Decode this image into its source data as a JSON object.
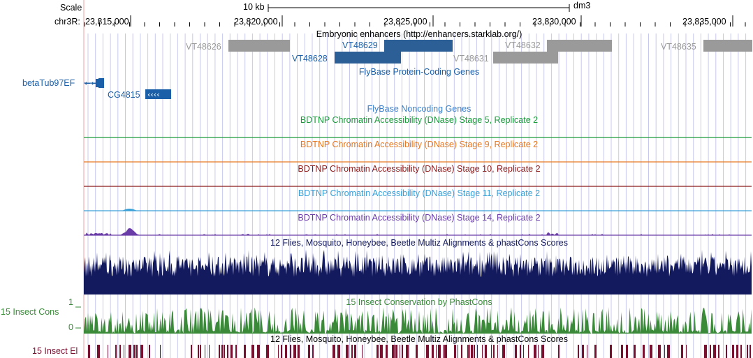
{
  "browser": {
    "scale_label": "Scale",
    "scale_bar_label": "10 kb",
    "assembly": "dm3",
    "chrom_label": "chr3R:",
    "positions": [
      "23,815,000",
      "23,820,000",
      "23,825,000",
      "23,830,000",
      "23,835,000"
    ]
  },
  "tracks": {
    "enhancers": {
      "title": "Embryonic enhancers (http://enhancers.starklab.org/)",
      "items": [
        {
          "name": "VT48626",
          "highlight": false
        },
        {
          "name": "VT48629",
          "highlight": true
        },
        {
          "name": "VT48632",
          "highlight": false
        },
        {
          "name": "VT48635",
          "highlight": false
        },
        {
          "name": "VT48628",
          "highlight": true
        },
        {
          "name": "VT48631",
          "highlight": false
        }
      ]
    },
    "coding_genes": {
      "title": "FlyBase Protein-Coding Genes",
      "genes": [
        "betaTub97EF",
        "CG4815"
      ]
    },
    "noncoding_genes": {
      "title": "FlyBase Noncoding Genes"
    },
    "dnase": [
      {
        "title": "BDTNP Chromatin Accessibility (DNase) Stage 5, Replicate 2",
        "color": "#1a9a3a"
      },
      {
        "title": "BDTNP Chromatin Accessibility (DNase) Stage 9, Replicate 2",
        "color": "#e67822"
      },
      {
        "title": "BDTNP Chromatin Accessibility (DNase) Stage 10, Replicate 2",
        "color": "#8b1a1a"
      },
      {
        "title": "BDTNP Chromatin Accessibility (DNase) Stage 11, Replicate 2",
        "color": "#3aa0d6"
      },
      {
        "title": "BDTNP Chromatin Accessibility (DNase) Stage 14, Replicate 2",
        "color": "#6a3ca8"
      }
    ],
    "multiz": {
      "title": "12 Flies, Mosquito, Honeybee, Beetle Multiz Alignments & phastCons Scores",
      "color": "#141a5e"
    },
    "phastcons": {
      "title": "15 Insect Conservation by PhastCons",
      "side_label": "15 Insect Cons",
      "axis_max": "1",
      "axis_min": "0",
      "color": "#3a8a3a"
    },
    "elements": {
      "title": "12 Flies, Mosquito, Honeybee, Beetle Multiz Alignments & phastCons Scores",
      "side_label": "15 Insect El",
      "color": "#7a1030"
    }
  },
  "colors": {
    "gene_blue": "#1a5fa8",
    "enhancer_highlight": "#2b5f96",
    "enhancer_gray": "#9a9a9a",
    "grid": "#c8c8ee",
    "red_line": "#f0a0a0"
  }
}
